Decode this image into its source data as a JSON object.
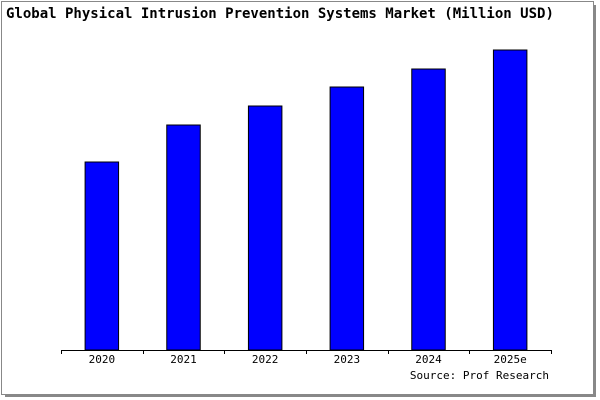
{
  "chart_data": {
    "type": "bar",
    "title": "Global Physical Intrusion Prevention Systems Market (Million USD)",
    "source": "Source: Prof Research",
    "categories": [
      "2020",
      "2021",
      "2022",
      "2023",
      "2024",
      "2025e"
    ],
    "values": [
      188,
      225,
      244,
      263,
      281,
      300
    ],
    "color": "#0000ff",
    "ylim": [
      0,
      302
    ]
  }
}
